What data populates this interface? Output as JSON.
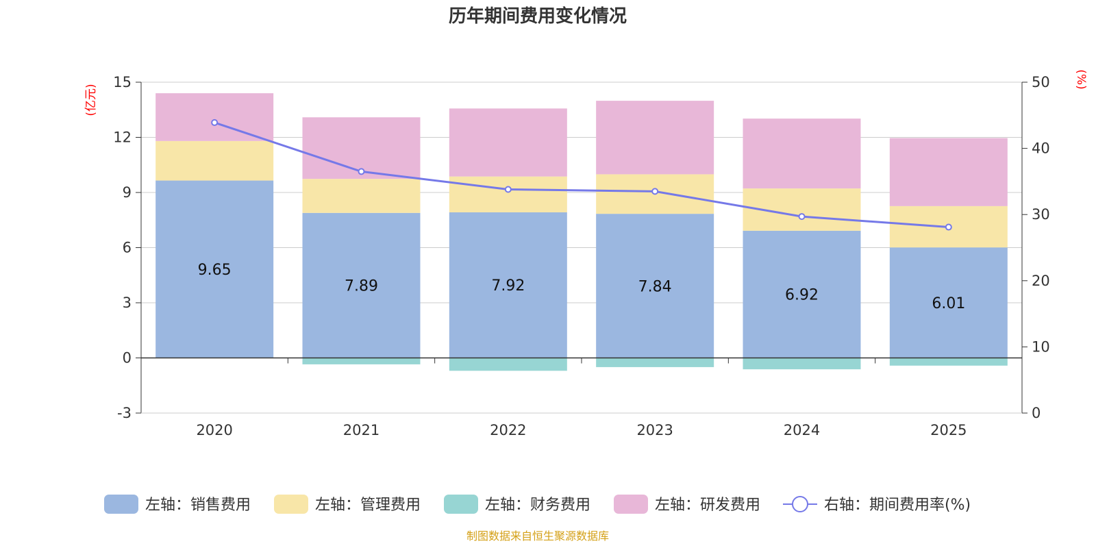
{
  "chart_data": {
    "type": "bar",
    "stacked": true,
    "title": "历年期间费用变化情况",
    "categories": [
      "2020",
      "2021",
      "2022",
      "2023",
      "2024",
      "2025"
    ],
    "left_axis": {
      "unit_label": "(亿元)",
      "ticks": [
        "15",
        "12",
        "9",
        "6",
        "3",
        "0",
        "-3"
      ],
      "range": [
        -3,
        15
      ]
    },
    "right_axis": {
      "unit_label": "(%)",
      "ticks": [
        "50",
        "40",
        "30",
        "20",
        "10",
        "0"
      ],
      "range": [
        0,
        50
      ]
    },
    "series": [
      {
        "name": "左轴：销售费用",
        "color": "#9BB7E0",
        "values": [
          9.65,
          7.89,
          7.92,
          7.84,
          6.92,
          6.01
        ],
        "labels": [
          "9.65",
          "7.89",
          "7.92",
          "7.84",
          "6.92",
          "6.01"
        ]
      },
      {
        "name": "左轴：管理费用",
        "color": "#F8E6A8",
        "values": [
          2.15,
          1.85,
          1.95,
          2.15,
          2.3,
          2.25
        ]
      },
      {
        "name": "左轴：财务费用",
        "color": "#97D5D3",
        "values": [
          0.0,
          -0.35,
          -0.7,
          -0.5,
          -0.62,
          -0.42
        ]
      },
      {
        "name": "左轴：研发费用",
        "color": "#E8B7D8",
        "values": [
          2.6,
          3.35,
          3.7,
          4.0,
          3.8,
          3.7
        ]
      },
      {
        "name": "右轴：期间费用率(%)",
        "color": "#7579E8",
        "axis": "right",
        "type": "line",
        "values": [
          43.9,
          36.5,
          33.8,
          33.5,
          29.7,
          28.1
        ]
      }
    ],
    "legend_position": "bottom",
    "source": "制图数据来自恒生聚源数据库"
  }
}
